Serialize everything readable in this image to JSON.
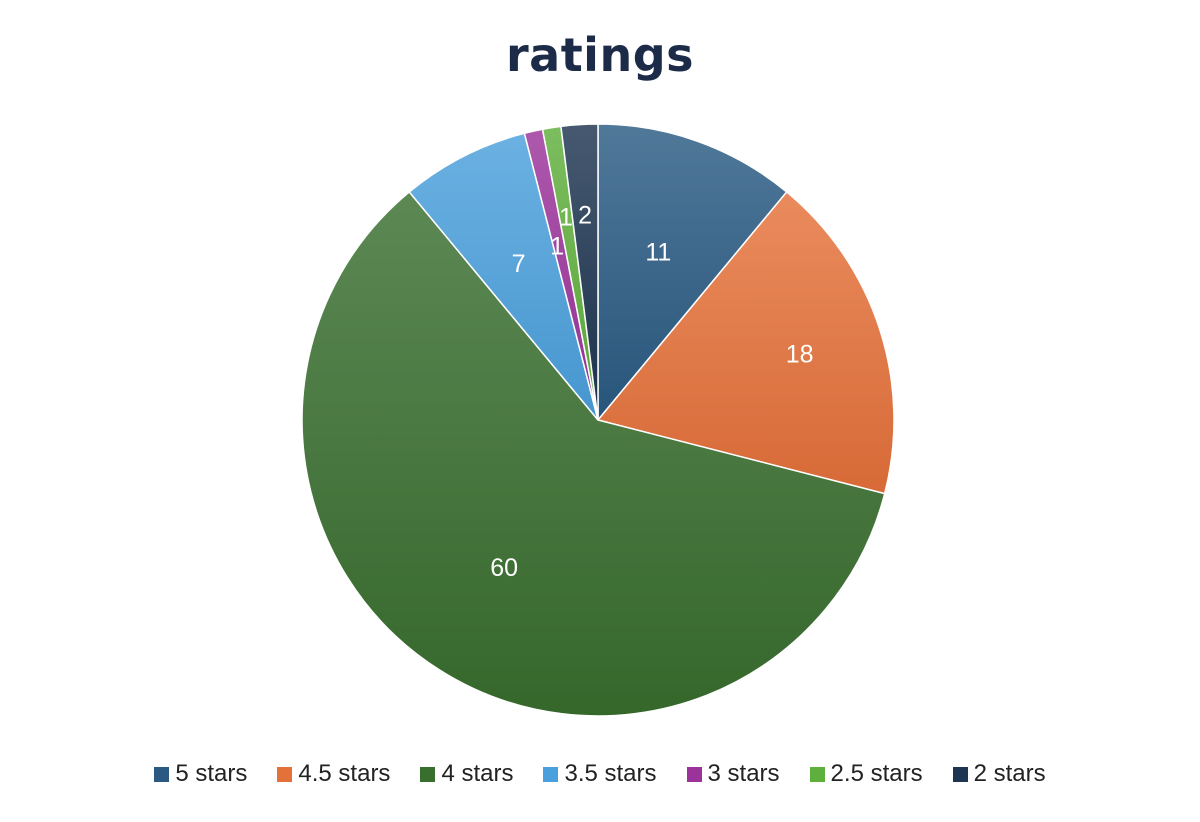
{
  "chart_data": {
    "type": "pie",
    "title": "ratings",
    "categories": [
      "5 stars",
      "4.5 stars",
      "4 stars",
      "3.5 stars",
      "3 stars",
      "2.5 stars",
      "2 stars"
    ],
    "values": [
      11,
      18,
      60,
      7,
      1,
      1,
      2
    ],
    "data_labels": [
      "11",
      "18",
      "60",
      "7",
      "1",
      "1",
      "2"
    ],
    "colors": [
      "#2a5a82",
      "#e5713a",
      "#386e2e",
      "#4aa0dc",
      "#9b339b",
      "#5faf3c",
      "#1d3550"
    ],
    "legend_position": "bottom"
  }
}
